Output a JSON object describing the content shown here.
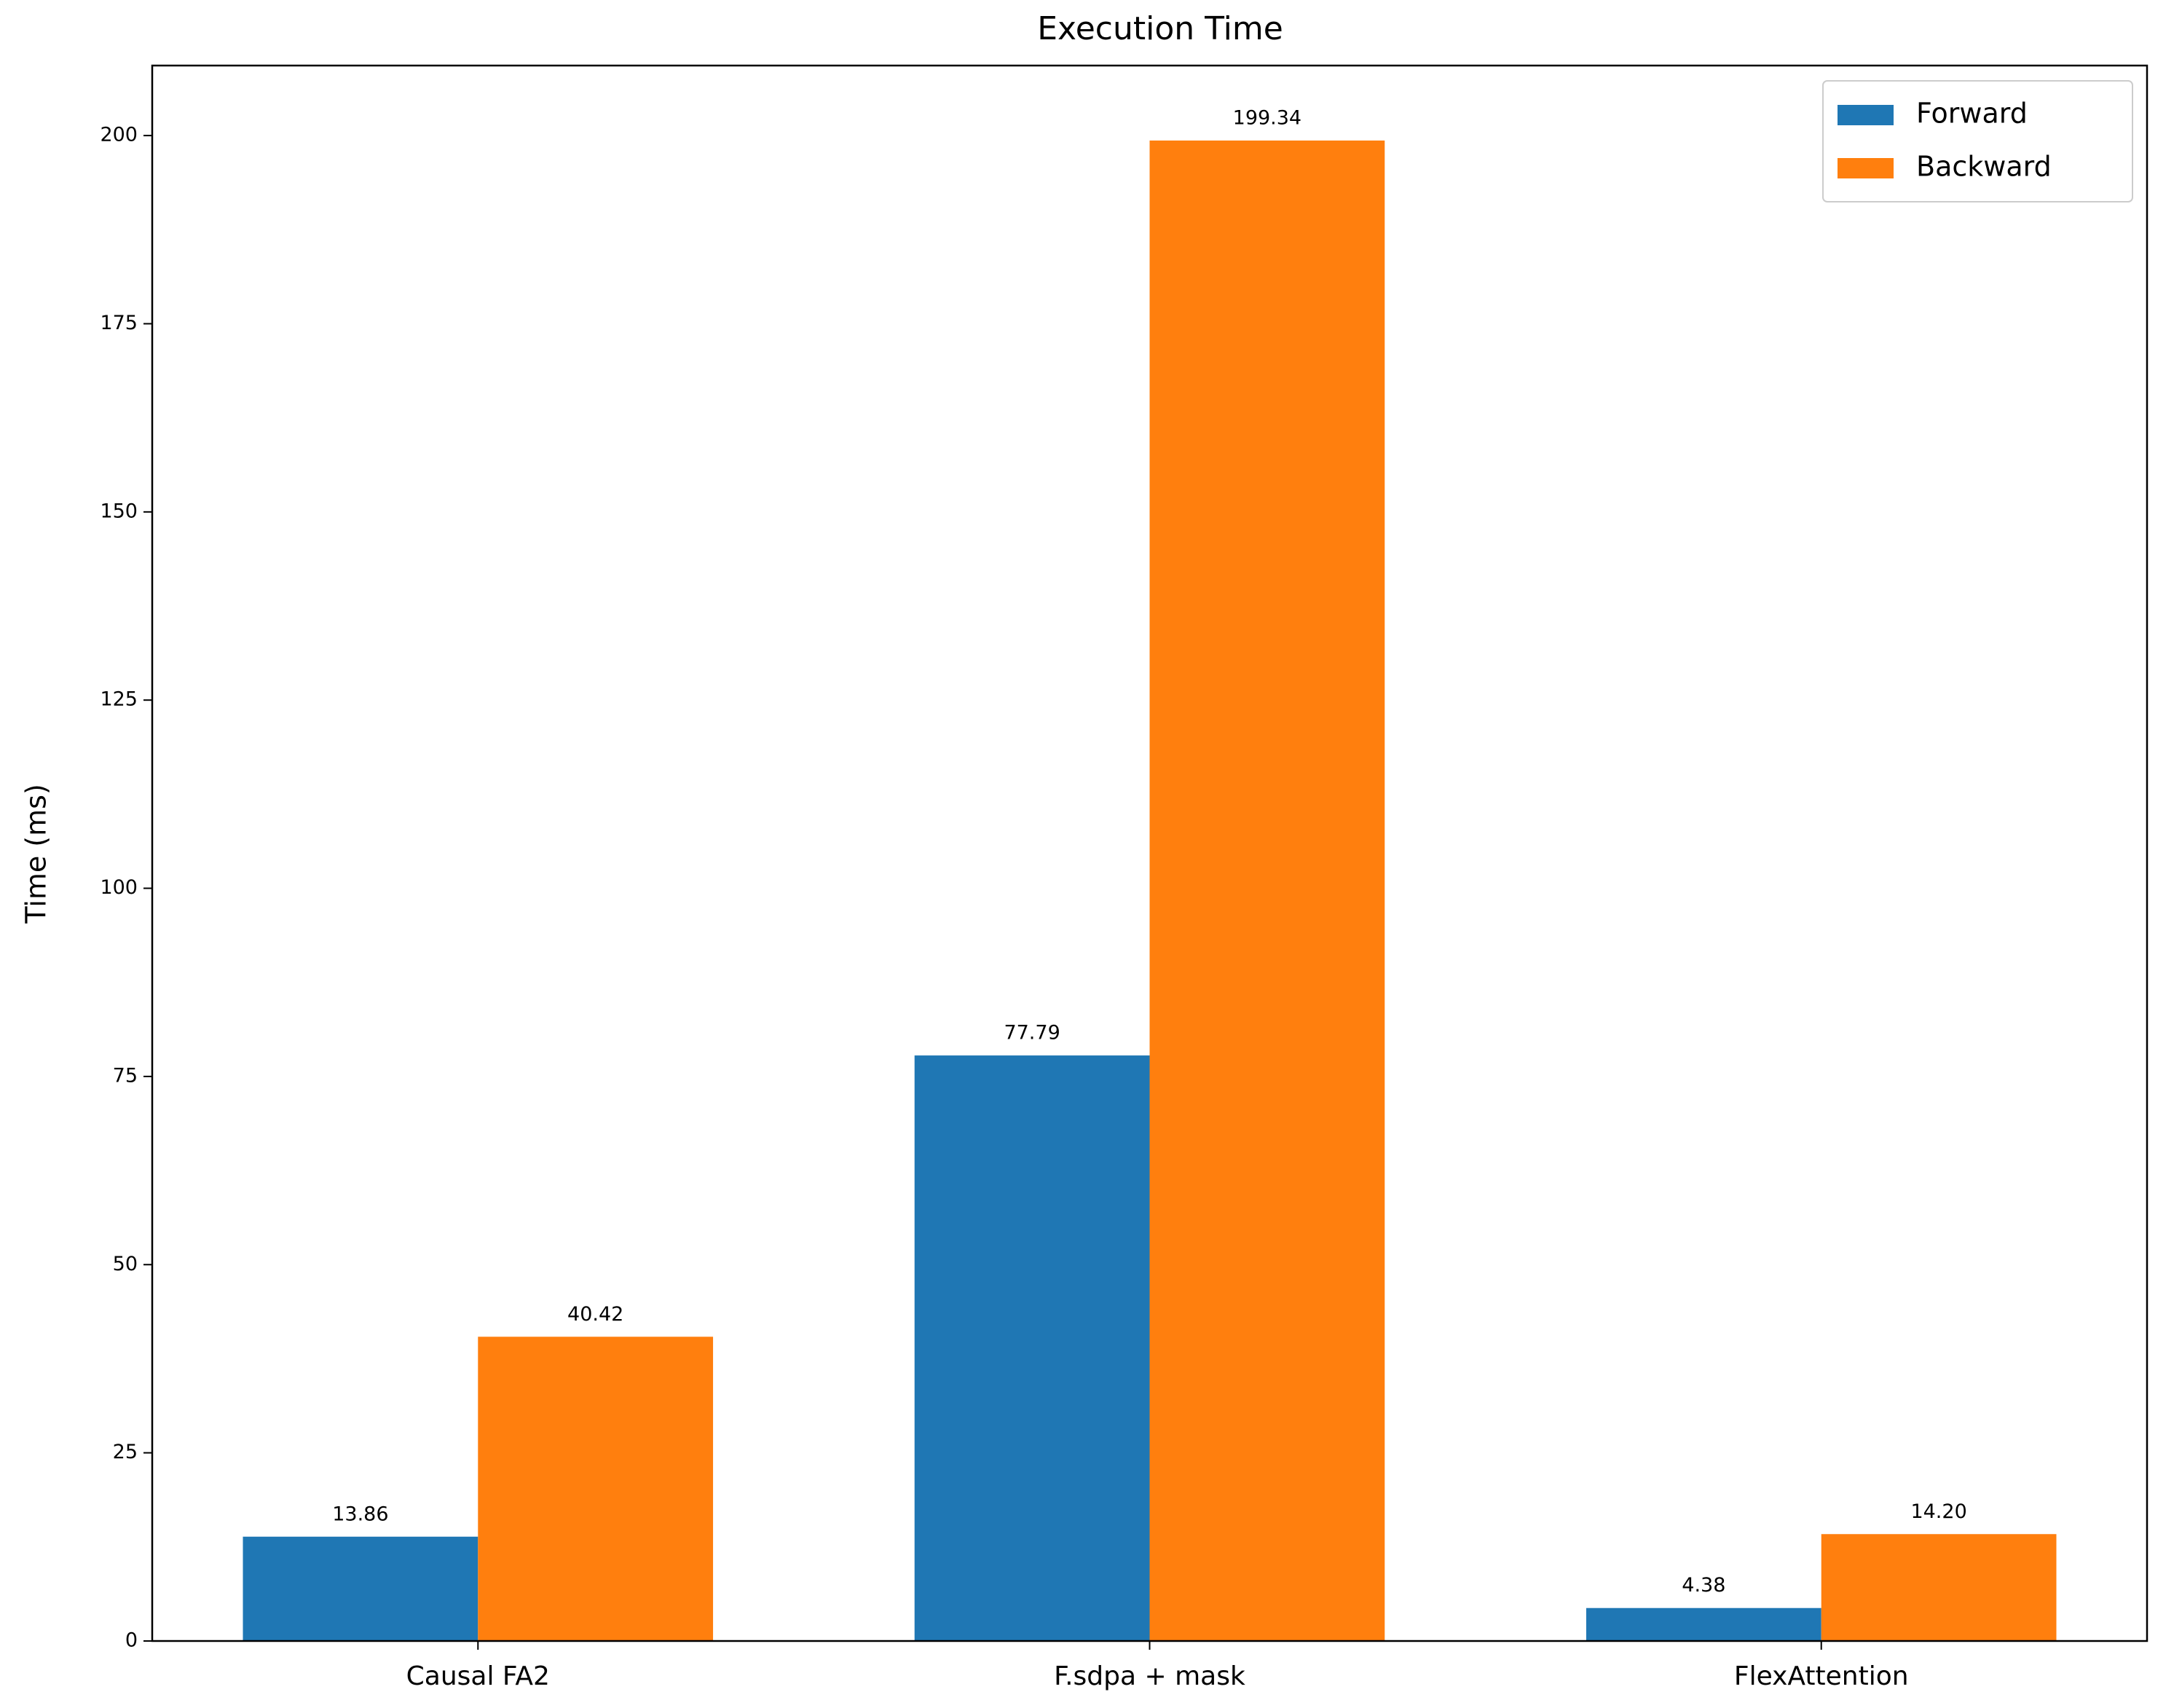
{
  "chart_data": {
    "type": "bar",
    "title": "Execution Time",
    "y_label": "Time (ms)",
    "categories": [
      "Causal FA2",
      "F.sdpa + mask",
      "FlexAttention"
    ],
    "series": [
      {
        "name": "Forward",
        "color": "#1f77b4",
        "values": [
          13.86,
          77.79,
          4.38
        ],
        "value_labels": [
          "13.86",
          "77.79",
          "4.38"
        ]
      },
      {
        "name": "Backward",
        "color": "#ff7f0e",
        "values": [
          40.42,
          199.34,
          14.2
        ],
        "value_labels": [
          "40.42",
          "199.34",
          "14.20"
        ]
      }
    ],
    "ylim": [
      0,
      209.3
    ],
    "yticks": [
      0,
      25,
      50,
      75,
      100,
      125,
      150,
      175,
      200
    ],
    "grid": false,
    "legend": "upper right"
  }
}
